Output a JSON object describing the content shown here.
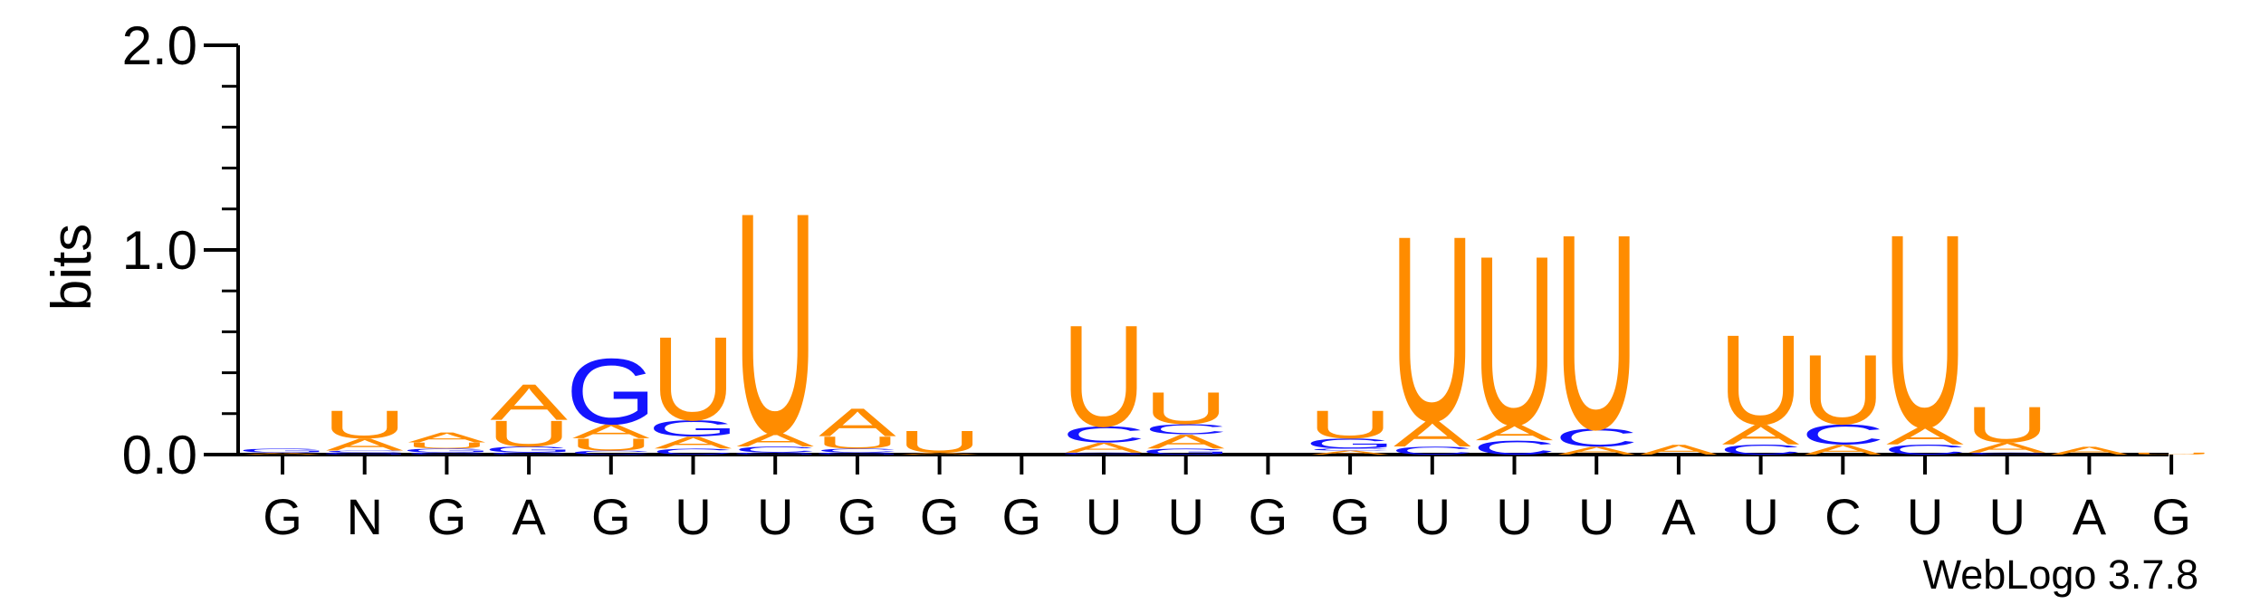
{
  "chart_data": {
    "type": "sequence-logo",
    "ylabel": "bits",
    "ylim": [
      0,
      2.0
    ],
    "y_ticks": [
      "0.0",
      "1.0",
      "2.0"
    ],
    "footer": "WebLogo 3.7.8",
    "colors": {
      "U": "#ff8c00",
      "A": "#ff8c00",
      "G": "#1414ff",
      "C": "#1414ff"
    },
    "positions": [
      {
        "label": "G",
        "stack": [
          {
            "letter": "A",
            "bits": 0.01
          },
          {
            "letter": "G",
            "bits": 0.02
          }
        ]
      },
      {
        "label": "N",
        "stack": [
          {
            "letter": "G",
            "bits": 0.01
          },
          {
            "letter": "C",
            "bits": 0.01
          },
          {
            "letter": "A",
            "bits": 0.06
          },
          {
            "letter": "U",
            "bits": 0.14
          }
        ]
      },
      {
        "label": "G",
        "stack": [
          {
            "letter": "C",
            "bits": 0.01
          },
          {
            "letter": "G",
            "bits": 0.02
          },
          {
            "letter": "U",
            "bits": 0.03
          },
          {
            "letter": "A",
            "bits": 0.05
          }
        ]
      },
      {
        "label": "A",
        "stack": [
          {
            "letter": "C",
            "bits": 0.01
          },
          {
            "letter": "G",
            "bits": 0.03
          },
          {
            "letter": "U",
            "bits": 0.13
          },
          {
            "letter": "A",
            "bits": 0.18
          }
        ]
      },
      {
        "label": "G",
        "stack": [
          {
            "letter": "C",
            "bits": 0.02
          },
          {
            "letter": "U",
            "bits": 0.06
          },
          {
            "letter": "A",
            "bits": 0.07
          },
          {
            "letter": "G",
            "bits": 0.33
          }
        ]
      },
      {
        "label": "U",
        "stack": [
          {
            "letter": "C",
            "bits": 0.03
          },
          {
            "letter": "A",
            "bits": 0.06
          },
          {
            "letter": "G",
            "bits": 0.08
          },
          {
            "letter": "U",
            "bits": 0.42
          }
        ]
      },
      {
        "label": "U",
        "stack": [
          {
            "letter": "G",
            "bits": 0.01
          },
          {
            "letter": "C",
            "bits": 0.03
          },
          {
            "letter": "A",
            "bits": 0.07
          },
          {
            "letter": "U",
            "bits": 1.11
          }
        ]
      },
      {
        "label": "G",
        "stack": [
          {
            "letter": "G",
            "bits": 0.01
          },
          {
            "letter": "C",
            "bits": 0.02
          },
          {
            "letter": "U",
            "bits": 0.06
          },
          {
            "letter": "A",
            "bits": 0.14
          }
        ]
      },
      {
        "label": "G",
        "stack": [
          {
            "letter": "A",
            "bits": 0.01
          },
          {
            "letter": "U",
            "bits": 0.11
          }
        ]
      },
      {
        "label": "G",
        "stack": []
      },
      {
        "label": "U",
        "stack": [
          {
            "letter": "G",
            "bits": 0.01
          },
          {
            "letter": "A",
            "bits": 0.05
          },
          {
            "letter": "C",
            "bits": 0.08
          },
          {
            "letter": "U",
            "bits": 0.51
          }
        ]
      },
      {
        "label": "U",
        "stack": [
          {
            "letter": "G",
            "bits": 0.03
          },
          {
            "letter": "A",
            "bits": 0.07
          },
          {
            "letter": "C",
            "bits": 0.05
          },
          {
            "letter": "U",
            "bits": 0.16
          }
        ]
      },
      {
        "label": "G",
        "stack": []
      },
      {
        "label": "G",
        "stack": [
          {
            "letter": "A",
            "bits": 0.02
          },
          {
            "letter": "C",
            "bits": 0.01
          },
          {
            "letter": "G",
            "bits": 0.05
          },
          {
            "letter": "U",
            "bits": 0.14
          }
        ]
      },
      {
        "label": "U",
        "stack": [
          {
            "letter": "C",
            "bits": 0.04
          },
          {
            "letter": "A",
            "bits": 0.13
          },
          {
            "letter": "U",
            "bits": 0.93
          }
        ]
      },
      {
        "label": "U",
        "stack": [
          {
            "letter": "C",
            "bits": 0.07
          },
          {
            "letter": "A",
            "bits": 0.08
          },
          {
            "letter": "U",
            "bits": 0.85
          }
        ]
      },
      {
        "label": "U",
        "stack": [
          {
            "letter": "A",
            "bits": 0.04
          },
          {
            "letter": "C",
            "bits": 0.09
          },
          {
            "letter": "U",
            "bits": 0.98
          }
        ]
      },
      {
        "label": "A",
        "stack": [
          {
            "letter": "A",
            "bits": 0.05
          }
        ]
      },
      {
        "label": "U",
        "stack": [
          {
            "letter": "C",
            "bits": 0.05
          },
          {
            "letter": "A",
            "bits": 0.1
          },
          {
            "letter": "U",
            "bits": 0.45
          }
        ]
      },
      {
        "label": "C",
        "stack": [
          {
            "letter": "A",
            "bits": 0.05
          },
          {
            "letter": "C",
            "bits": 0.1
          },
          {
            "letter": "U",
            "bits": 0.35
          }
        ]
      },
      {
        "label": "U",
        "stack": [
          {
            "letter": "C",
            "bits": 0.05
          },
          {
            "letter": "A",
            "bits": 0.09
          },
          {
            "letter": "U",
            "bits": 0.97
          }
        ]
      },
      {
        "label": "U",
        "stack": [
          {
            "letter": "C",
            "bits": 0.01
          },
          {
            "letter": "A",
            "bits": 0.05
          },
          {
            "letter": "U",
            "bits": 0.18
          }
        ]
      },
      {
        "label": "A",
        "stack": [
          {
            "letter": "A",
            "bits": 0.04
          }
        ]
      },
      {
        "label": "G",
        "stack": [
          {
            "letter": "U",
            "bits": 0.01
          }
        ]
      }
    ]
  }
}
